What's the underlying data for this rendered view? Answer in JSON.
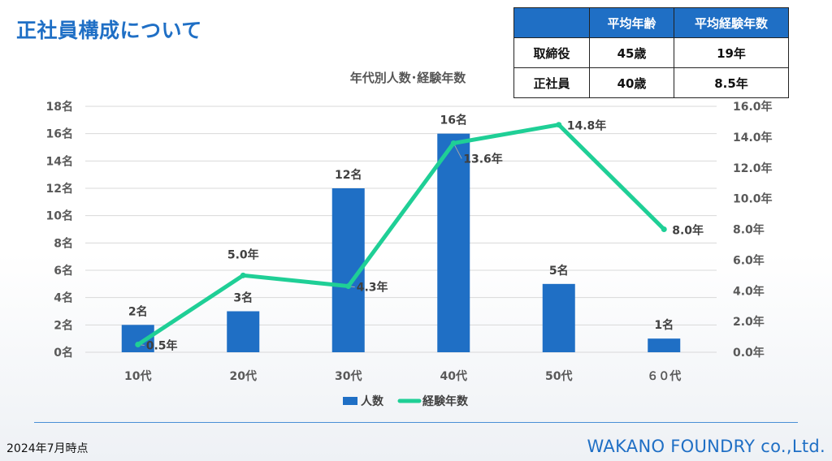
{
  "page": {
    "title": "正社員構成について",
    "date_note": "2024年7月時点",
    "company": "WAKANO FOUNDRY co.,Ltd."
  },
  "summary_table": {
    "headers": [
      "",
      "平均年齢",
      "平均経験年数"
    ],
    "rows": [
      [
        "取締役",
        "45歳",
        "19年"
      ],
      [
        "正社員",
        "40歳",
        "8.5年"
      ]
    ]
  },
  "chart_data": {
    "type": "bar+line",
    "title": "年代別人数･経験年数",
    "categories": [
      "10代",
      "20代",
      "30代",
      "40代",
      "50代",
      "６０代"
    ],
    "series": [
      {
        "name": "人数",
        "type": "bar",
        "axis": "left",
        "values": [
          2,
          3,
          12,
          16,
          5,
          1
        ],
        "labels": [
          "2名",
          "3名",
          "12名",
          "16名",
          "5名",
          "1名"
        ],
        "color": "#1f6fc5"
      },
      {
        "name": "経験年数",
        "type": "line",
        "axis": "right",
        "values": [
          0.5,
          5.0,
          4.3,
          13.6,
          14.8,
          8.0
        ],
        "labels": [
          "0.5年",
          "5.0年",
          "4.3年",
          "13.6年",
          "14.8年",
          "8.0年"
        ],
        "color": "#1fcf96"
      }
    ],
    "y_left": {
      "range": [
        0,
        18
      ],
      "ticks": [
        "0名",
        "2名",
        "4名",
        "6名",
        "8名",
        "10名",
        "12名",
        "14名",
        "16名",
        "18名"
      ]
    },
    "y_right": {
      "range": [
        0,
        16
      ],
      "ticks": [
        "0.0年",
        "2.0年",
        "4.0年",
        "6.0年",
        "8.0年",
        "10.0年",
        "12.0年",
        "14.0年",
        "16.0年"
      ]
    },
    "grid": true,
    "legend_position": "bottom"
  }
}
